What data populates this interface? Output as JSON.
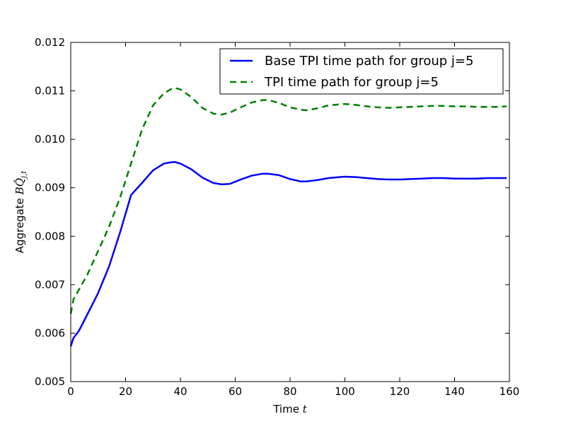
{
  "chart_data": {
    "type": "line",
    "title": "",
    "xlabel": "Time",
    "xlabel_symbol": "t",
    "ylabel": "Aggregate",
    "ylabel_symbol": "BQ̂",
    "ylabel_subscript": "j,t",
    "xlim": [
      0,
      160
    ],
    "ylim": [
      0.005,
      0.012
    ],
    "xticks": [
      "0",
      "20",
      "40",
      "60",
      "80",
      "100",
      "120",
      "140",
      "160"
    ],
    "yticks": [
      "0.005",
      "0.006",
      "0.007",
      "0.008",
      "0.009",
      "0.010",
      "0.011",
      "0.012"
    ],
    "grid": false,
    "legend_position": "top-right",
    "series": [
      {
        "name": "Base TPI time path for group j=5",
        "color": "#0000ff",
        "style": "solid",
        "x": [
          0,
          1,
          3,
          6,
          10,
          14,
          18,
          22,
          26,
          30,
          34,
          37,
          38,
          40,
          44,
          48,
          52,
          55,
          58,
          62,
          66,
          70,
          72,
          76,
          80,
          84,
          86,
          90,
          94,
          98,
          100,
          104,
          108,
          112,
          116,
          120,
          124,
          128,
          132,
          136,
          140,
          144,
          148,
          152,
          156,
          159
        ],
        "y": [
          0.00573,
          0.0059,
          0.00605,
          0.00638,
          0.00683,
          0.00738,
          0.00808,
          0.00885,
          0.0091,
          0.00936,
          0.0095,
          0.00953,
          0.00953,
          0.0095,
          0.00938,
          0.00921,
          0.0091,
          0.00907,
          0.00908,
          0.00917,
          0.00925,
          0.00929,
          0.00929,
          0.00926,
          0.00918,
          0.00913,
          0.00913,
          0.00916,
          0.0092,
          0.00922,
          0.00923,
          0.00922,
          0.0092,
          0.00918,
          0.00917,
          0.00917,
          0.00918,
          0.00919,
          0.0092,
          0.0092,
          0.00919,
          0.00919,
          0.00919,
          0.0092,
          0.0092,
          0.0092
        ]
      },
      {
        "name": "TPI time path for group j=5",
        "color": "#008000",
        "style": "dashed",
        "x": [
          0,
          1,
          3,
          6,
          10,
          14,
          18,
          22,
          26,
          30,
          34,
          37,
          38,
          40,
          44,
          48,
          52,
          55,
          58,
          62,
          66,
          70,
          72,
          76,
          80,
          84,
          86,
          90,
          94,
          98,
          100,
          104,
          108,
          112,
          116,
          120,
          124,
          128,
          132,
          136,
          140,
          144,
          148,
          152,
          156,
          159
        ],
        "y": [
          0.0064,
          0.0067,
          0.0069,
          0.0072,
          0.0077,
          0.0082,
          0.0088,
          0.0095,
          0.0102,
          0.0107,
          0.01095,
          0.01105,
          0.01106,
          0.01103,
          0.01087,
          0.01065,
          0.01053,
          0.01051,
          0.01055,
          0.01066,
          0.01076,
          0.01081,
          0.01081,
          0.01075,
          0.01066,
          0.01061,
          0.0106,
          0.01064,
          0.0107,
          0.01072,
          0.01073,
          0.01071,
          0.01068,
          0.01066,
          0.01065,
          0.01066,
          0.01067,
          0.01068,
          0.01069,
          0.01069,
          0.01068,
          0.01068,
          0.01067,
          0.01067,
          0.01067,
          0.01068
        ]
      }
    ]
  }
}
